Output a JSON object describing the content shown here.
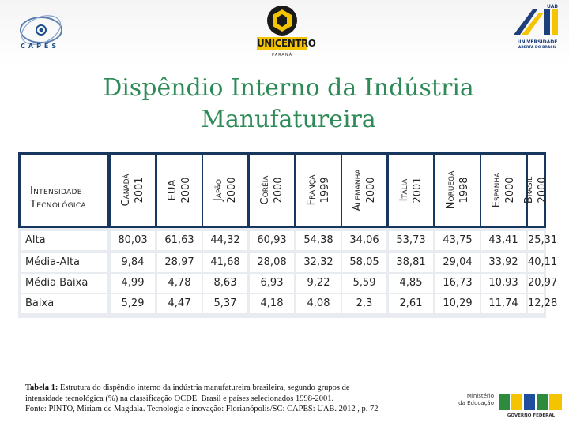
{
  "logos": {
    "capes": "CAPES",
    "unicentro": "UNICENTRO",
    "unicentro_sub": "PARANÁ",
    "uab_line1": "UNIVERSIDADE",
    "uab_line2": "ABERTA DO BRASIL",
    "mec_line1": "Ministério",
    "mec_line2": "da Educação",
    "brasil_tag": "GOVERNO FEDERAL"
  },
  "title_line1": "Dispêndio Interno da Indústria",
  "title_line2": "Manufatureira",
  "table": {
    "corner_line1": "Intensidade",
    "corner_line2": "Tecnológica",
    "columns": [
      {
        "country": "Canadá",
        "year": "2001"
      },
      {
        "country": "EUA",
        "year": "2000"
      },
      {
        "country": "Japão",
        "year": "2000"
      },
      {
        "country": "Coréia",
        "year": "2000"
      },
      {
        "country": "França",
        "year": "1999"
      },
      {
        "country": "Alemanha",
        "year": "2000"
      },
      {
        "country": "Itália",
        "year": "2001"
      },
      {
        "country": "Noruega",
        "year": "1998"
      },
      {
        "country": "Espanha",
        "year": "2000"
      },
      {
        "country": "Brasil",
        "year": "2000"
      }
    ],
    "rows": [
      {
        "label": "Alta",
        "values": [
          "80,03",
          "61,63",
          "44,32",
          "60,93",
          "54,38",
          "34,06",
          "53,73",
          "43,75",
          "43,41",
          "25,31"
        ]
      },
      {
        "label": "Média-Alta",
        "values": [
          "9,84",
          "28,97",
          "41,68",
          "28,08",
          "32,32",
          "58,05",
          "38,81",
          "29,04",
          "33,92",
          "40,11"
        ]
      },
      {
        "label": "Média Baixa",
        "values": [
          "4,99",
          "4,78",
          "8,63",
          "6,93",
          "9,22",
          "5,59",
          "4,85",
          "16,73",
          "10,93",
          "20,97"
        ]
      },
      {
        "label": "Baixa",
        "values": [
          "5,29",
          "4,47",
          "5,37",
          "4,18",
          "4,08",
          "2,3",
          "2,61",
          "10,29",
          "11,74",
          "12,28"
        ]
      }
    ]
  },
  "caption": {
    "label": "Tabela 1:",
    "line1": " Estrutura do dispêndio interno da indústria manufatureira brasileira, segundo grupos de",
    "line2": "intensidade tecnológica (%) na classificação OCDE. Brasil e países selecionados 1998-2001.",
    "line3": "Fonte: PINTO, Miriam de Magdala. Tecnologia e inovação: Florianópolis/SC: CAPES: UAB. 2012 , p. 72"
  },
  "colors": {
    "title": "#2e8b57",
    "table_header_band": "#17375e",
    "table_body_bg": "#e8ecf1"
  }
}
